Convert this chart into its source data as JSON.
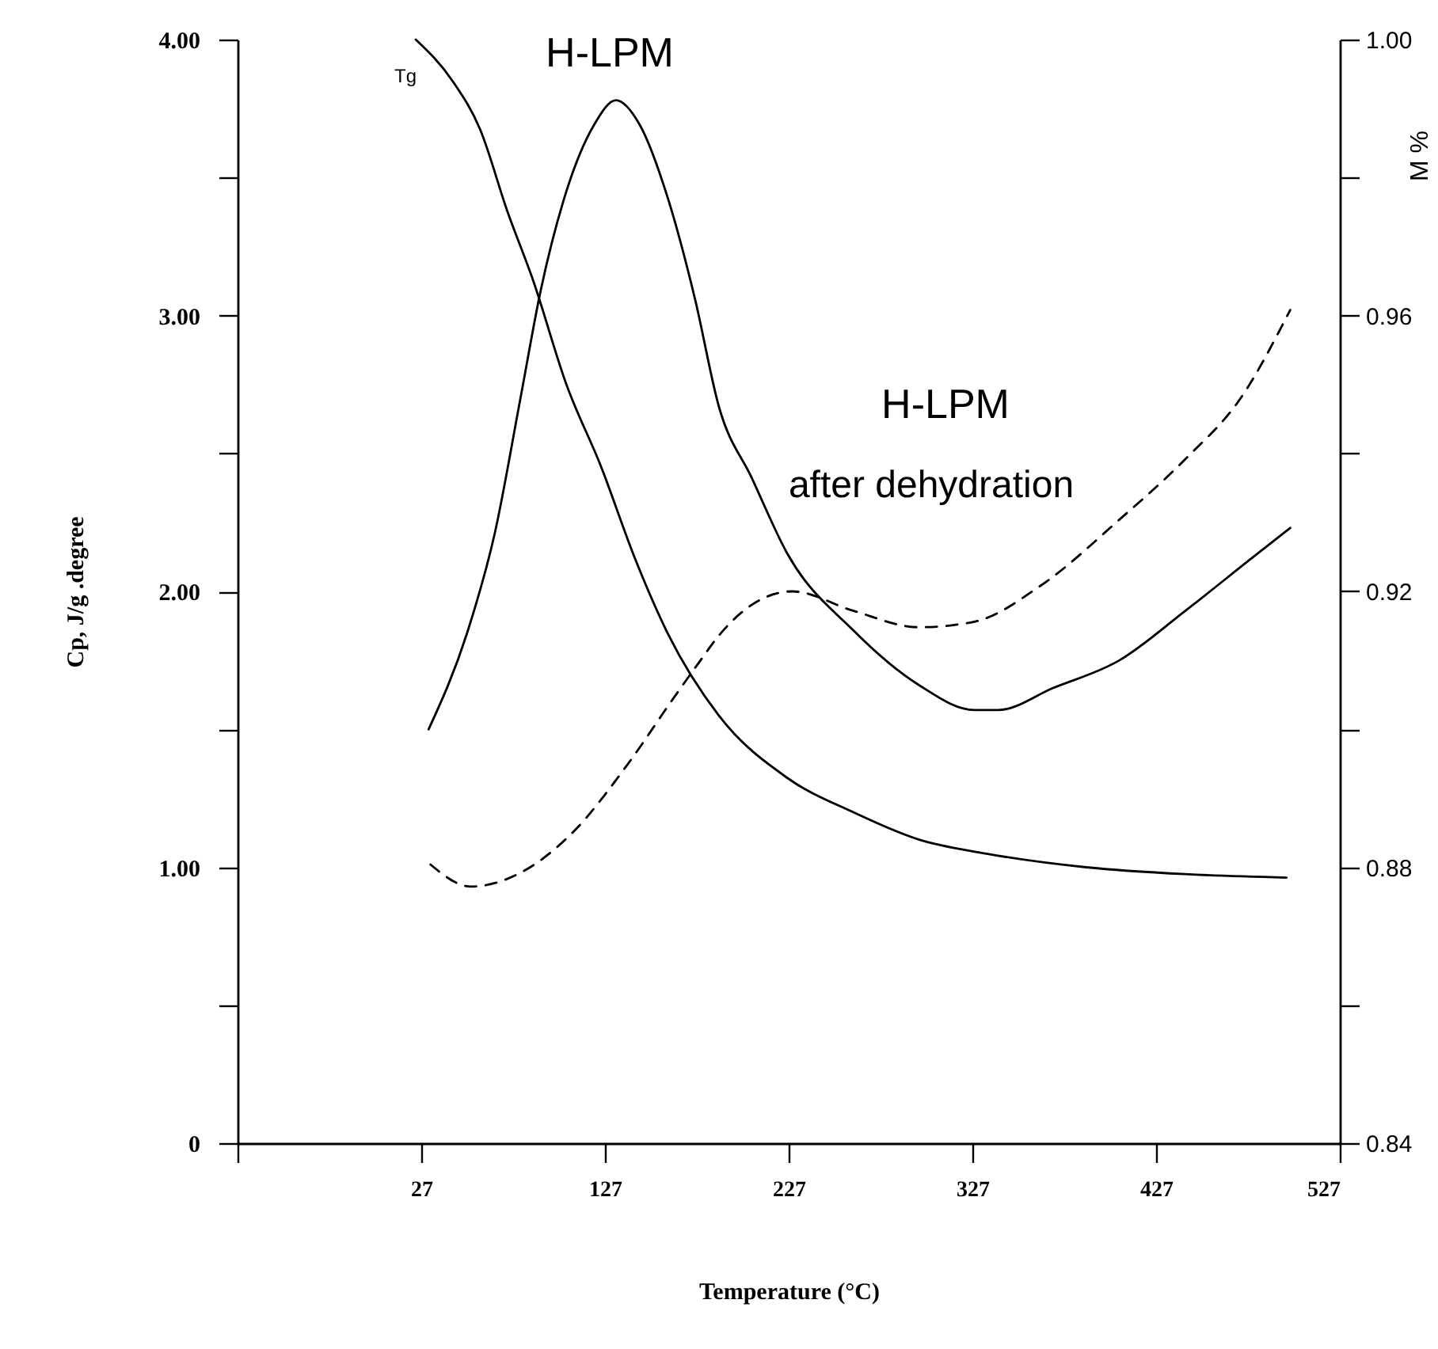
{
  "chart_data": {
    "type": "line",
    "xlabel": "Temperature (°C)",
    "ylabel": "Cp,  J/g .degree",
    "y2label": "M %",
    "xlim": [
      -73,
      527
    ],
    "xticks": [
      {
        "value": -73,
        "label": null
      },
      27,
      127,
      227,
      327,
      427,
      527
    ],
    "ylim": [
      0,
      4
    ],
    "yticks": [
      {
        "value": 0,
        "label": "0"
      },
      {
        "value": 0.5,
        "label": null
      },
      {
        "value": 1,
        "label": "1.00"
      },
      {
        "value": 1.5,
        "label": null
      },
      {
        "value": 2,
        "label": "2.00"
      },
      {
        "value": 2.5,
        "label": null
      },
      {
        "value": 3,
        "label": "3.00"
      },
      {
        "value": 3.5,
        "label": null
      },
      {
        "value": 4,
        "label": "4.00"
      }
    ],
    "y2lim": [
      0.84,
      1.0
    ],
    "y2ticks": [
      0.84,
      {
        "value": 0.86,
        "label": null
      },
      0.88,
      {
        "value": 0.9,
        "label": null
      },
      0.92,
      {
        "value": 0.94,
        "label": null
      },
      0.96,
      {
        "value": 0.98,
        "label": null
      },
      {
        "value": 1.0,
        "label": "1.00"
      }
    ],
    "grid": false,
    "marker": "none",
    "series": [
      {
        "color": "#000000",
        "line_style": "solid",
        "x": [
          31,
          52,
          67,
          81,
          92,
          106,
          121,
          133,
          146,
          161,
          176,
          189,
          207,
          226,
          262,
          298,
          328,
          341,
          371,
          407,
          443,
          479,
          500
        ],
        "values": [
          1.5,
          1.85,
          2.21,
          2.7,
          3.09,
          3.45,
          3.69,
          3.78,
          3.69,
          3.43,
          3.06,
          2.67,
          2.41,
          2.14,
          1.86,
          1.66,
          1.57,
          1.57,
          1.65,
          1.75,
          1.93,
          2.12,
          2.23
        ]
      },
      {
        "color": "#000000",
        "line_style": "solid",
        "axis": "y2",
        "x": [
          24,
          44,
          59,
          74,
          88,
          106,
          125,
          143,
          161,
          189,
          226,
          262,
          298,
          334,
          389,
          443,
          498
        ],
        "values": [
          1.0,
          0.994,
          0.987,
          0.975,
          0.965,
          0.95,
          0.938,
          0.925,
          0.914,
          0.902,
          0.893,
          0.888,
          0.884,
          0.882,
          0.88,
          0.879,
          0.8785
        ]
      },
      {
        "color": "#000000",
        "line_style": "dashed",
        "x": [
          32,
          54,
          81,
          110,
          139,
          164,
          179,
          189,
          229,
          262,
          298,
          328,
          364,
          407,
          443,
          473,
          500
        ],
        "values": [
          1.01,
          0.93,
          0.98,
          1.13,
          1.37,
          1.61,
          1.75,
          1.84,
          2.0,
          1.93,
          1.87,
          1.89,
          2.02,
          2.26,
          2.48,
          2.7,
          3.02
        ]
      }
    ],
    "annotations": [
      "Tg",
      "H-LPM",
      "H-LPM",
      "after dehydration"
    ]
  }
}
